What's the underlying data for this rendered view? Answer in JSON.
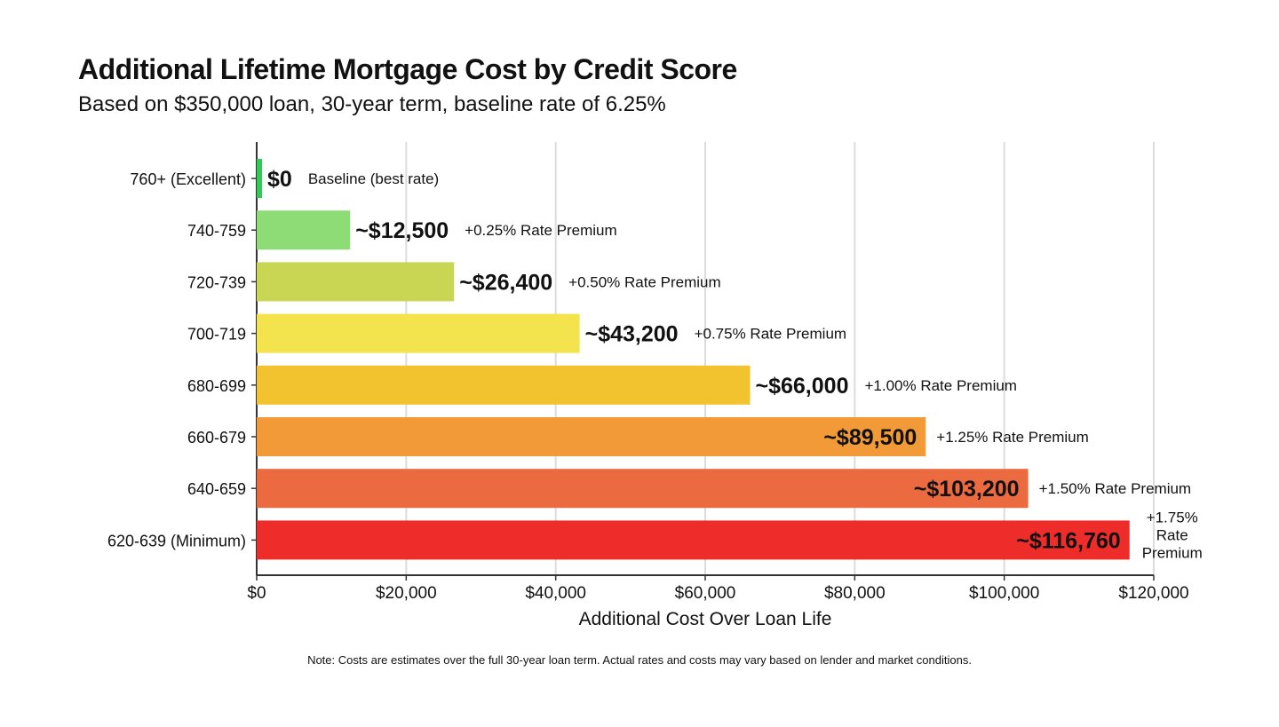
{
  "chart_data": {
    "type": "bar",
    "orientation": "horizontal",
    "title": "Additional Lifetime Mortgage Cost by Credit Score",
    "subtitle": "Based on $350,000 loan, 30-year term, baseline rate of 6.25%",
    "xlabel": "Additional Cost Over Loan Life",
    "ylabel": "",
    "xlim": [
      0,
      120000
    ],
    "x_ticks": [
      0,
      20000,
      40000,
      60000,
      80000,
      100000,
      120000
    ],
    "x_tick_labels": [
      "$0",
      "$20,000",
      "$40,000",
      "$60,000",
      "$80,000",
      "$100,000",
      "$120,000"
    ],
    "grid": "vertical",
    "categories": [
      "760+ (Excellent)",
      "740-759",
      "720-739",
      "700-719",
      "680-699",
      "660-679",
      "640-659",
      "620-639 (Minimum)"
    ],
    "values": [
      0,
      12500,
      26400,
      43200,
      66000,
      89500,
      103200,
      116760
    ],
    "value_labels": [
      "$0",
      "~$12,500",
      "~$26,400",
      "~$43,200",
      "~$66,000",
      "~$89,500",
      "~$103,200",
      "~$116,760"
    ],
    "annotations": [
      "Baseline (best rate)",
      "+0.25% Rate Premium",
      "+0.50% Rate Premium",
      "+0.75% Rate Premium",
      "+1.00% Rate Premium",
      "+1.25% Rate Premium",
      "+1.50% Rate Premium",
      "+1.75% Rate Premium"
    ],
    "colors": [
      "#2ecc55",
      "#8edc76",
      "#c9d653",
      "#f3e34d",
      "#f2c22f",
      "#f29a38",
      "#eb6a3f",
      "#ee2c2a"
    ],
    "note": "Note: Costs are estimates over the full 30-year loan term. Actual rates and costs may vary based on lender and market conditions."
  }
}
